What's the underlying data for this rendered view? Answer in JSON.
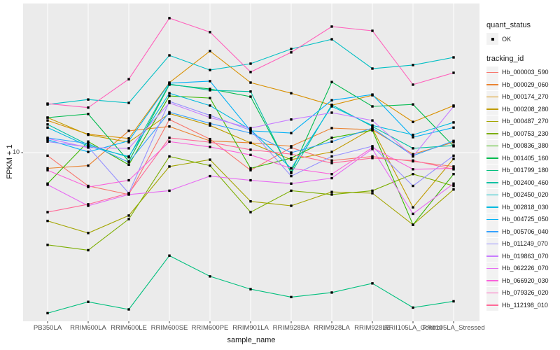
{
  "legend": {
    "quant_status_title": "quant_status",
    "quant_status_items": [
      "OK"
    ],
    "tracking_id_title": "tracking_id"
  },
  "chart_data": {
    "type": "line",
    "title": "",
    "xlabel": "sample_name",
    "ylabel": "FPKM + 1",
    "y_scale": "log10",
    "ylim": [
      1.04,
      74
    ],
    "y_ticks": [
      10
    ],
    "y_tick_labels": [
      "10"
    ],
    "grid": "on",
    "legend_position": "right",
    "panel_bg": "#EBEBEB",
    "grid_color": "#FFFFFF",
    "point_color": "#000000",
    "point_shape": "square",
    "categories": [
      "PB350LA",
      "RRIM600LA",
      "RRIM600LE",
      "RRIM600SE",
      "RRIM600PE",
      "RRIM901LA",
      "RRIM928BA",
      "RRIM928LA",
      "RRIM928LE",
      "RRII105LA_Control",
      "RRII105LA_Stressed"
    ],
    "series": [
      {
        "name": "Hb_000003_590",
        "color": "#F8766D",
        "values": [
          9.6,
          6.4,
          5.7,
          15.6,
          12.0,
          7.9,
          10.7,
          9.0,
          9.5,
          8.9,
          8.3
        ]
      },
      {
        "name": "Hb_000029_060",
        "color": "#EA8331",
        "values": [
          8.1,
          8.4,
          13.4,
          14.2,
          11.7,
          11.4,
          10.9,
          13.9,
          13.6,
          9.8,
          11.5
        ]
      },
      {
        "name": "Hb_000174_270",
        "color": "#D89000",
        "values": [
          15.4,
          12.8,
          12.1,
          25.6,
          39.1,
          25.6,
          22.2,
          18.9,
          21.6,
          15.1,
          18.8
        ]
      },
      {
        "name": "Hb_000208_280",
        "color": "#C09B00",
        "values": [
          16.0,
          12.7,
          11.5,
          16.9,
          14.4,
          11.4,
          9.1,
          10.1,
          13.8,
          4.8,
          9.2
        ]
      },
      {
        "name": "Hb_000487_270",
        "color": "#A3A500",
        "values": [
          4.0,
          3.4,
          4.3,
          8.3,
          9.1,
          5.2,
          4.9,
          5.9,
          5.8,
          3.8,
          6.1
        ]
      },
      {
        "name": "Hb_000753_230",
        "color": "#7CAE00",
        "values": [
          2.9,
          2.7,
          4.1,
          9.5,
          8.4,
          4.5,
          6.0,
          5.7,
          6.0,
          7.5,
          6.4
        ]
      },
      {
        "name": "Hb_000836_380",
        "color": "#39B600",
        "values": [
          6.6,
          11.6,
          8.5,
          21.4,
          20.8,
          8.1,
          9.3,
          12.2,
          13.5,
          3.8,
          7.5
        ]
      },
      {
        "name": "Hb_001405_160",
        "color": "#00BB4E",
        "values": [
          16.0,
          16.8,
          8.9,
          24.9,
          23.5,
          21.2,
          7.7,
          25.8,
          18.6,
          19.1,
          10.9
        ]
      },
      {
        "name": "Hb_001799_180",
        "color": "#00BF7D",
        "values": [
          1.16,
          1.35,
          1.22,
          2.51,
          1.9,
          1.6,
          1.44,
          1.53,
          1.73,
          1.25,
          1.36
        ]
      },
      {
        "name": "Hb_002400_460",
        "color": "#00C1A3",
        "values": [
          14.6,
          11.1,
          9.4,
          25.1,
          23.1,
          22.7,
          7.6,
          19.0,
          14.2,
          10.6,
          11.0
        ]
      },
      {
        "name": "Hb_002450_020",
        "color": "#00BFC4",
        "values": [
          19.1,
          20.4,
          19.5,
          36.9,
          30.3,
          33.0,
          40.2,
          45.8,
          30.9,
          32.4,
          35.9
        ]
      },
      {
        "name": "Hb_002818_030",
        "color": "#00BAE0",
        "values": [
          14.0,
          10.9,
          9.5,
          22.2,
          18.8,
          13.6,
          8.1,
          18.6,
          14.4,
          12.7,
          15.0
        ]
      },
      {
        "name": "Hb_004725_050",
        "color": "#00B0F6",
        "values": [
          11.9,
          10.1,
          11.7,
          25.4,
          26.1,
          13.4,
          13.0,
          20.2,
          21.8,
          12.3,
          14.0
        ]
      },
      {
        "name": "Hb_005706_040",
        "color": "#35A2FF",
        "values": [
          12.2,
          11.3,
          8.8,
          17.2,
          14.8,
          13.0,
          10.0,
          11.6,
          13.9,
          9.6,
          11.7
        ]
      },
      {
        "name": "Hb_011249_070",
        "color": "#9590FF",
        "values": [
          11.6,
          10.8,
          5.8,
          19.9,
          16.5,
          13.5,
          7.3,
          9.5,
          10.9,
          6.4,
          9.6
        ]
      },
      {
        "name": "Hb_019863_070",
        "color": "#C77CFF",
        "values": [
          12.1,
          10.7,
          10.6,
          19.5,
          16.0,
          13.9,
          15.6,
          17.1,
          15.4,
          9.5,
          18.6
        ]
      },
      {
        "name": "Hb_062226_070",
        "color": "#E76BF3",
        "values": [
          6.5,
          4.9,
          5.7,
          6.0,
          7.3,
          6.9,
          6.6,
          7.1,
          10.5,
          4.4,
          6.6
        ]
      },
      {
        "name": "Hb_066920_030",
        "color": "#FA62DB",
        "values": [
          7.9,
          6.3,
          6.9,
          11.6,
          10.8,
          9.7,
          8.1,
          7.5,
          10.7,
          8.0,
          8.1
        ]
      },
      {
        "name": "Hb_079326_020",
        "color": "#FF62BC",
        "values": [
          19.3,
          18.3,
          26.8,
          60.8,
          50.4,
          29.5,
          38.4,
          54.3,
          51.3,
          24.9,
          29.2
        ]
      },
      {
        "name": "Hb_112198_010",
        "color": "#FF6A98",
        "values": [
          4.5,
          5.0,
          5.8,
          12.2,
          11.5,
          10.4,
          9.8,
          8.7,
          9.3,
          9.0,
          8.0
        ]
      }
    ]
  }
}
